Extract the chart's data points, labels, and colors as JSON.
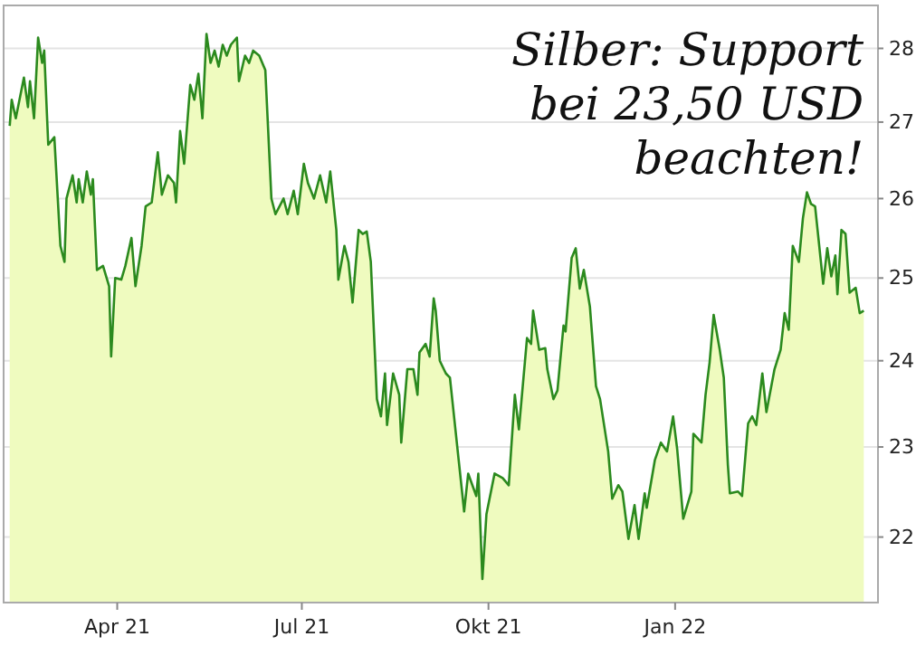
{
  "chart_data": {
    "type": "area",
    "title": "Silber: Support\nbei 23,50 USD\nbeachten!",
    "log": true,
    "grid": "y",
    "xlim": [
      "2021-02-04",
      "2022-04-11"
    ],
    "xticks": [
      {
        "value": "2021-04-01",
        "label": "Apr 21"
      },
      {
        "value": "2021-07-01",
        "label": "Jul 21"
      },
      {
        "value": "2021-10-01",
        "label": "Okt 21"
      },
      {
        "value": "2022-01-01",
        "label": "Jan 22"
      }
    ],
    "ylim": [
      21.3,
      28.6
    ],
    "yticks": [
      22,
      23,
      24,
      25,
      26,
      27,
      28
    ],
    "x": [
      "2021-02-07",
      "2021-02-08",
      "2021-02-10",
      "2021-02-14",
      "2021-02-16",
      "2021-02-17",
      "2021-02-19",
      "2021-02-21",
      "2021-02-23",
      "2021-02-24",
      "2021-02-26",
      "2021-03-01",
      "2021-03-04",
      "2021-03-06",
      "2021-03-07",
      "2021-03-10",
      "2021-03-12",
      "2021-03-13",
      "2021-03-15",
      "2021-03-17",
      "2021-03-19",
      "2021-03-20",
      "2021-03-22",
      "2021-03-25",
      "2021-03-28",
      "2021-03-29",
      "2021-03-31",
      "2021-04-03",
      "2021-04-05",
      "2021-04-08",
      "2021-04-10",
      "2021-04-13",
      "2021-04-15",
      "2021-04-18",
      "2021-04-21",
      "2021-04-23",
      "2021-04-26",
      "2021-04-29",
      "2021-04-30",
      "2021-05-02",
      "2021-05-04",
      "2021-05-06",
      "2021-05-07",
      "2021-05-09",
      "2021-05-11",
      "2021-05-13",
      "2021-05-15",
      "2021-05-17",
      "2021-05-19",
      "2021-05-21",
      "2021-05-23",
      "2021-05-25",
      "2021-05-27",
      "2021-05-30",
      "2021-05-31",
      "2021-06-03",
      "2021-06-05",
      "2021-06-07",
      "2021-06-10",
      "2021-06-13",
      "2021-06-16",
      "2021-06-18",
      "2021-06-22",
      "2021-06-24",
      "2021-06-27",
      "2021-06-29",
      "2021-07-02",
      "2021-07-04",
      "2021-07-07",
      "2021-07-10",
      "2021-07-13",
      "2021-07-15",
      "2021-07-18",
      "2021-07-19",
      "2021-07-22",
      "2021-07-24",
      "2021-07-26",
      "2021-07-29",
      "2021-07-31",
      "2021-08-02",
      "2021-08-04",
      "2021-08-07",
      "2021-08-09",
      "2021-08-11",
      "2021-08-12",
      "2021-08-15",
      "2021-08-18",
      "2021-08-19",
      "2021-08-22",
      "2021-08-25",
      "2021-08-27",
      "2021-08-28",
      "2021-08-31",
      "2021-09-02",
      "2021-09-04",
      "2021-09-05",
      "2021-09-07",
      "2021-09-10",
      "2021-09-12",
      "2021-09-19",
      "2021-09-21",
      "2021-09-25",
      "2021-09-26",
      "2021-09-28",
      "2021-09-30",
      "2021-10-04",
      "2021-10-08",
      "2021-10-11",
      "2021-10-14",
      "2021-10-16",
      "2021-10-20",
      "2021-10-22",
      "2021-10-23",
      "2021-10-26",
      "2021-10-29",
      "2021-10-30",
      "2021-11-02",
      "2021-11-04",
      "2021-11-07",
      "2021-11-08",
      "2021-11-11",
      "2021-11-13",
      "2021-11-15",
      "2021-11-17",
      "2021-11-20",
      "2021-11-23",
      "2021-11-25",
      "2021-11-29",
      "2021-12-01",
      "2021-12-04",
      "2021-12-06",
      "2021-12-09",
      "2021-12-12",
      "2021-12-14",
      "2021-12-17",
      "2021-12-18",
      "2021-12-22",
      "2021-12-25",
      "2021-12-28",
      "2021-12-31",
      "2022-01-02",
      "2022-01-05",
      "2022-01-09",
      "2022-01-10",
      "2022-01-14",
      "2022-01-16",
      "2022-01-18",
      "2022-01-20",
      "2022-01-23",
      "2022-01-25",
      "2022-01-27",
      "2022-01-28",
      "2022-02-01",
      "2022-02-03",
      "2022-02-06",
      "2022-02-08",
      "2022-02-10",
      "2022-02-13",
      "2022-02-15",
      "2022-02-19",
      "2022-02-22",
      "2022-02-24",
      "2022-02-26",
      "2022-02-28",
      "2022-03-03",
      "2022-03-05",
      "2022-03-07",
      "2022-03-09",
      "2022-03-11",
      "2022-03-15",
      "2022-03-17",
      "2022-03-19",
      "2022-03-21",
      "2022-03-22",
      "2022-03-24",
      "2022-03-26",
      "2022-03-28",
      "2022-03-31",
      "2022-04-02",
      "2022-04-04"
    ],
    "series": [
      {
        "color": "#2b8a1e",
        "values": [
          26.95,
          27.3,
          27.05,
          27.6,
          27.2,
          27.55,
          27.05,
          28.15,
          27.8,
          27.97,
          26.7,
          26.8,
          25.4,
          25.2,
          26.0,
          26.3,
          25.95,
          26.25,
          25.95,
          26.35,
          26.05,
          26.25,
          25.1,
          25.15,
          24.9,
          24.05,
          25.0,
          24.98,
          25.15,
          25.5,
          24.9,
          25.4,
          25.9,
          25.95,
          26.6,
          26.05,
          26.3,
          26.2,
          25.95,
          26.88,
          26.45,
          27.15,
          27.5,
          27.3,
          27.65,
          27.05,
          28.2,
          27.8,
          27.97,
          27.75,
          28.05,
          27.9,
          28.05,
          28.15,
          27.55,
          27.9,
          27.8,
          27.97,
          27.9,
          27.7,
          26.0,
          25.8,
          26.0,
          25.8,
          26.1,
          25.8,
          26.45,
          26.2,
          26.0,
          26.3,
          25.95,
          26.35,
          25.6,
          24.98,
          25.4,
          25.2,
          24.7,
          25.6,
          25.55,
          25.58,
          25.2,
          23.55,
          23.35,
          23.85,
          23.25,
          23.85,
          23.6,
          23.05,
          23.9,
          23.9,
          23.6,
          24.1,
          24.2,
          24.05,
          24.75,
          24.6,
          24.0,
          23.85,
          23.8,
          22.28,
          22.7,
          22.45,
          22.7,
          21.55,
          22.25,
          22.7,
          22.65,
          22.57,
          23.6,
          23.2,
          24.27,
          24.2,
          24.6,
          24.13,
          24.15,
          23.9,
          23.55,
          23.65,
          24.42,
          24.35,
          25.25,
          25.37,
          24.87,
          25.1,
          24.65,
          23.7,
          23.55,
          22.95,
          22.42,
          22.57,
          22.5,
          21.98,
          22.35,
          21.98,
          22.48,
          22.32,
          22.85,
          23.05,
          22.95,
          23.35,
          22.98,
          22.2,
          22.5,
          23.15,
          23.05,
          23.6,
          23.98,
          24.55,
          24.13,
          23.8,
          22.8,
          22.48,
          22.5,
          22.45,
          23.27,
          23.35,
          23.25,
          23.85,
          23.4,
          23.9,
          24.13,
          24.57,
          24.37,
          25.4,
          25.2,
          25.75,
          26.08,
          25.93,
          25.9,
          24.93,
          25.37,
          25.02,
          25.28,
          24.8,
          25.6,
          25.55,
          24.82,
          24.88,
          24.57,
          24.6
        ]
      }
    ]
  }
}
